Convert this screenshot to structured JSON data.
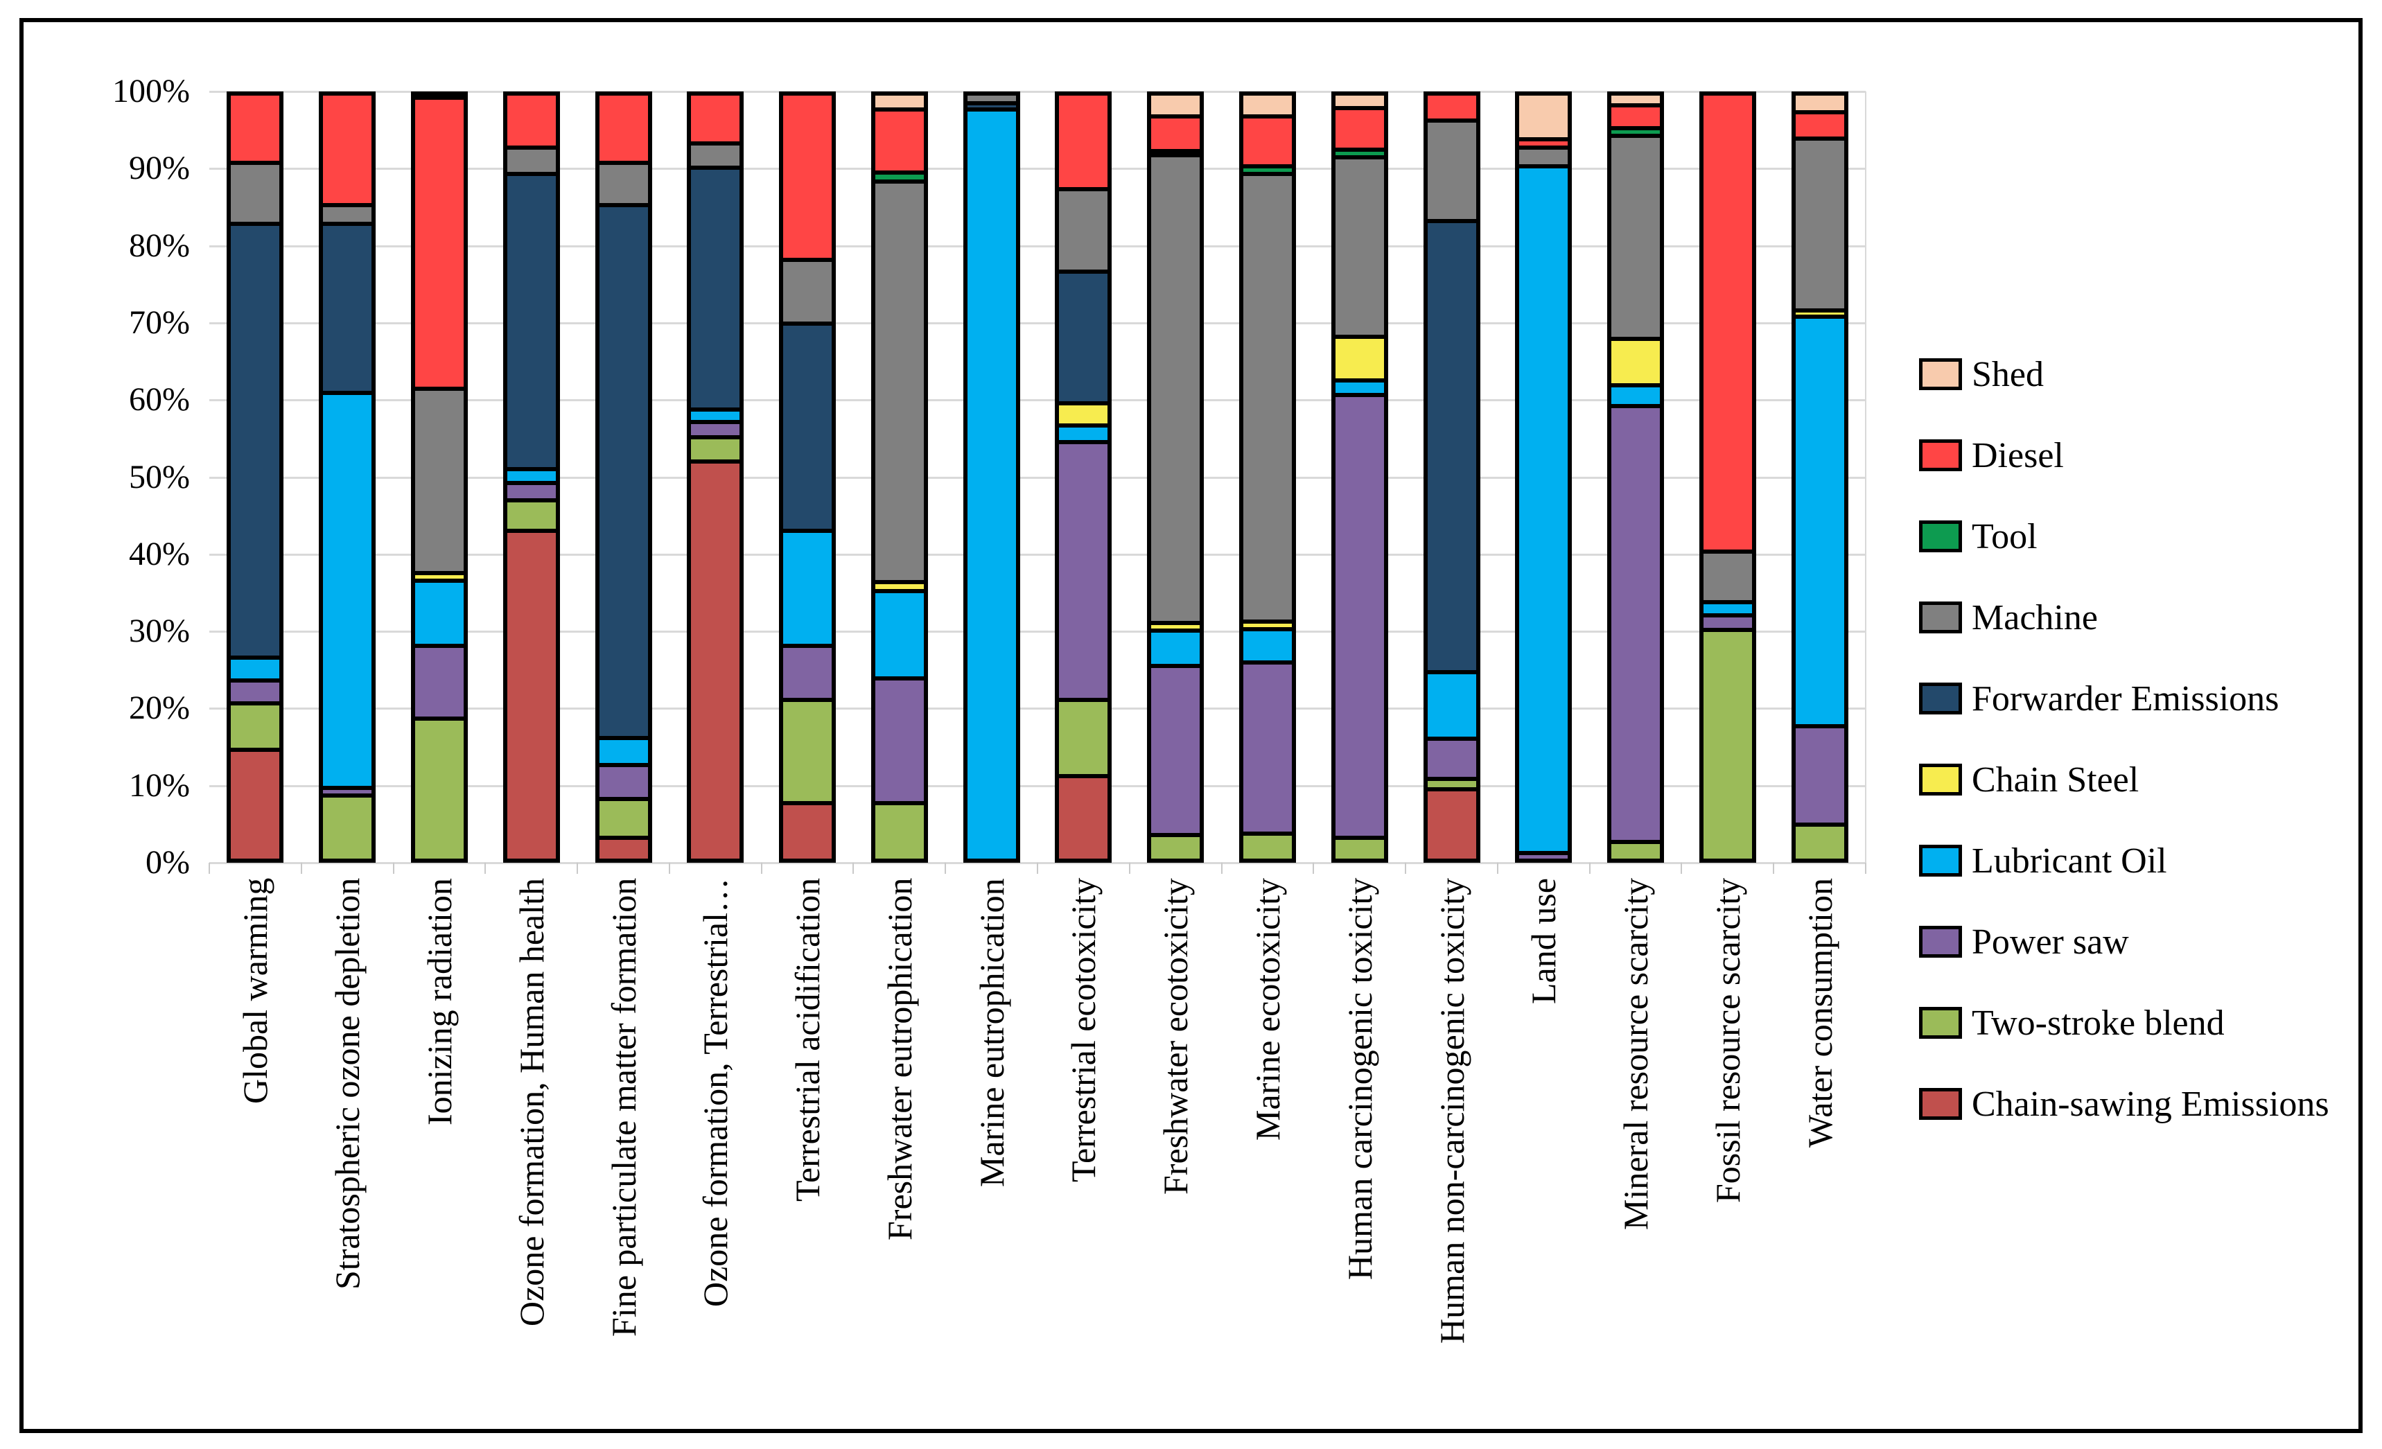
{
  "chart_data": {
    "type": "bar",
    "subtype": "stacked-100-percent",
    "title": "",
    "xlabel": "",
    "ylabel": "",
    "ylim": [
      0,
      100
    ],
    "grid": true,
    "legend_position": "right",
    "y_ticks": [
      "100%",
      "90%",
      "80%",
      "70%",
      "60%",
      "50%",
      "40%",
      "30%",
      "20%",
      "10%",
      "0%"
    ],
    "categories": [
      "Global warming",
      "Stratospheric ozone depletion",
      "Ionizing radiation",
      "Ozone formation, Human health",
      "Fine particulate matter formation",
      "Ozone formation, Terrestrial…",
      "Terrestrial acidification",
      "Freshwater eutrophication",
      "Marine eutrophication",
      "Terrestrial ecotoxicity",
      "Freshwater ecotoxicity",
      "Marine ecotoxicity",
      "Human carcinogenic toxicity",
      "Human non-carcinogenic toxicity",
      "Land use",
      "Mineral resource scarcity",
      "Fossil resource scarcity",
      "Water consumption"
    ],
    "series_note": "values are percent of each 100% stacked column, listed bottom-to-top stacking order",
    "series": [
      {
        "name": "Chain-sawing Emissions",
        "color": "#C0504D",
        "values": [
          14.5,
          0,
          0,
          43,
          3,
          52,
          7.5,
          0,
          0,
          11,
          0,
          0,
          0,
          9.3,
          0,
          0,
          0,
          0
        ]
      },
      {
        "name": "Two-stroke blend",
        "color": "#9BBB59",
        "values": [
          6,
          8.5,
          18.5,
          4,
          5,
          3.2,
          13.5,
          7.5,
          0,
          10,
          3.3,
          3.5,
          3,
          1.4,
          0,
          2.4,
          30.1,
          4.7
        ]
      },
      {
        "name": "Power saw",
        "color": "#8064A2",
        "values": [
          3,
          1,
          9.5,
          2.2,
          4.5,
          2,
          7,
          16.3,
          0,
          33.6,
          22.1,
          22.3,
          57.7,
          5.2,
          1,
          56.9,
          1.9,
          12.8
        ]
      },
      {
        "name": "Lubricant Oil",
        "color": "#00B0F0",
        "values": [
          3,
          51.5,
          8.5,
          1.8,
          3.5,
          1.6,
          15,
          11.3,
          97.9,
          2.1,
          4.6,
          4.4,
          1.9,
          8.7,
          89.5,
          2.7,
          1.7,
          53.4
        ]
      },
      {
        "name": "Chain Steel",
        "color": "#F7EC4F",
        "values": [
          0,
          0,
          1,
          0,
          0,
          0,
          0,
          1.2,
          0,
          2.9,
          1,
          1,
          5.7,
          0,
          0,
          6,
          0,
          0.8
        ]
      },
      {
        "name": "Forwarder Emissions",
        "color": "#23496B",
        "values": [
          56.5,
          22,
          0,
          38.5,
          69.5,
          31.5,
          27,
          0,
          0.8,
          17.2,
          0,
          0,
          0,
          58.8,
          0,
          0,
          0,
          0
        ]
      },
      {
        "name": "Machine",
        "color": "#808080",
        "values": [
          8,
          2.5,
          24,
          3.5,
          5.5,
          3.2,
          8.3,
          52.2,
          1.3,
          10.7,
          61,
          58.3,
          23.4,
          13.1,
          2.5,
          26.5,
          6.6,
          22.4
        ]
      },
      {
        "name": "Tool",
        "color": "#0D9B50",
        "values": [
          0,
          0,
          0,
          0,
          0,
          0,
          0,
          1.2,
          0,
          0,
          0.5,
          1,
          1,
          0,
          0,
          1,
          0,
          0
        ]
      },
      {
        "name": "Diesel",
        "color": "#FF4545",
        "values": [
          9,
          14.5,
          38,
          7,
          9,
          6.5,
          21.7,
          8.2,
          0,
          12.5,
          4.5,
          6.5,
          5.4,
          3.5,
          1,
          3,
          59.7,
          3.5
        ]
      },
      {
        "name": "Shed",
        "color": "#F8CBAD",
        "values": [
          0,
          0,
          0.5,
          0,
          0,
          0,
          0,
          2.1,
          0,
          0,
          3,
          3,
          1.9,
          0,
          6,
          1.5,
          0,
          2.4
        ]
      }
    ],
    "legend_order_top_to_bottom": [
      "Shed",
      "Diesel",
      "Tool",
      "Machine",
      "Forwarder Emissions",
      "Chain Steel",
      "Lubricant Oil",
      "Power saw",
      "Two-stroke blend",
      "Chain-sawing Emissions"
    ]
  }
}
